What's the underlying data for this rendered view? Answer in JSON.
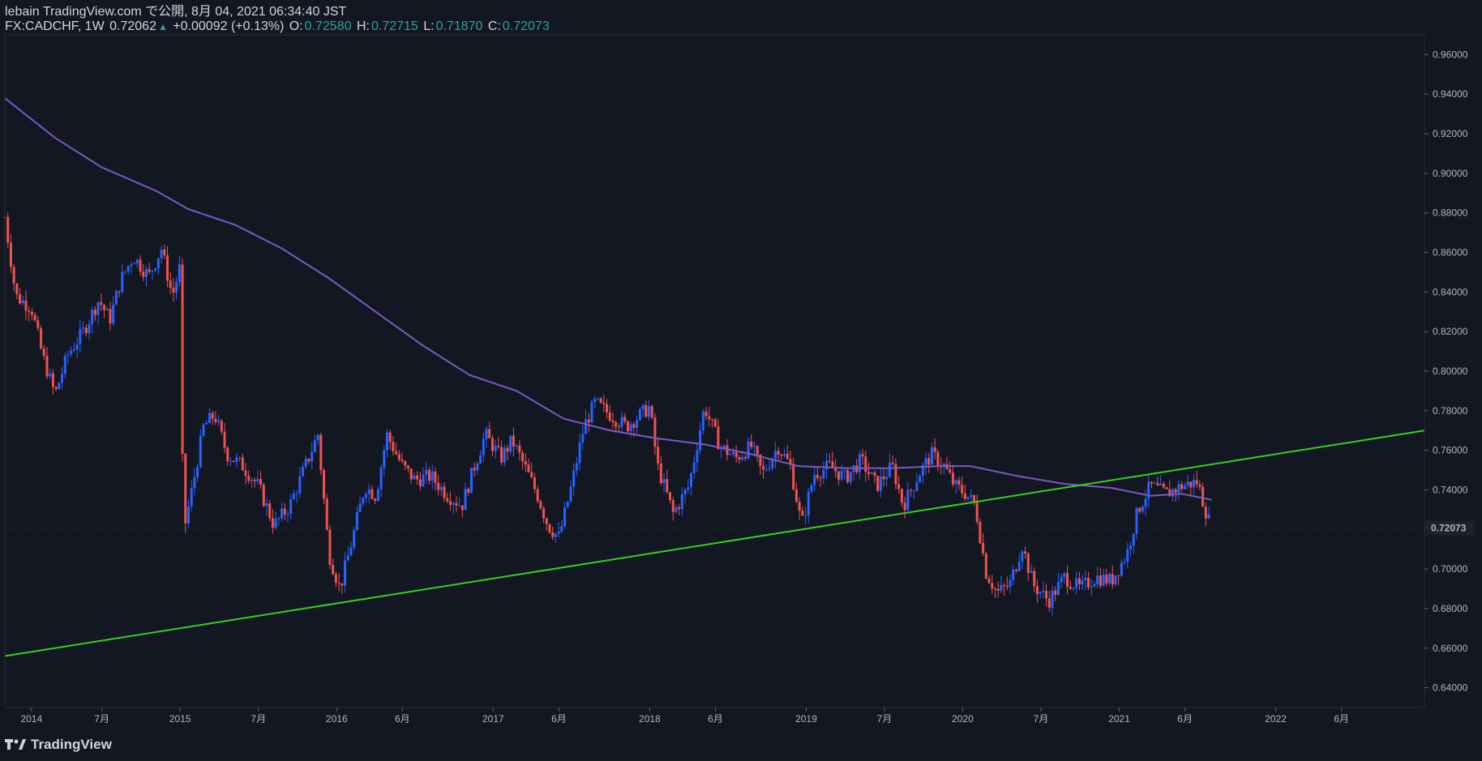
{
  "header": {
    "publish_line": "lebain TradingView.com で公開, 8月 04, 2021 06:34:40 JST",
    "symbol": "FX:CADCHF, 1W",
    "last": "0.72062",
    "change": "+0.00092 (+0.13%)",
    "o_label": "O:",
    "o_value": "0.72580",
    "h_label": "H:",
    "h_value": "0.72715",
    "l_label": "L:",
    "l_value": "0.71870",
    "c_label": "C:",
    "c_value": "0.72073"
  },
  "footer": {
    "brand": "TradingView"
  },
  "colors": {
    "bg": "#131722",
    "up": "#2962ff",
    "down": "#ef5350",
    "ma": "#7e57c2",
    "trend": "#33d11f",
    "grid": "#2a2e39"
  },
  "chart_data": {
    "type": "candlestick",
    "title": "FX:CADCHF 1W",
    "y_range": [
      0.63,
      0.97
    ],
    "y_ticks": [
      "0.96000",
      "0.94000",
      "0.92000",
      "0.90000",
      "0.88000",
      "0.86000",
      "0.84000",
      "0.82000",
      "0.80000",
      "0.78000",
      "0.76000",
      "0.74000",
      "0.72000",
      "0.70000",
      "0.68000",
      "0.66000",
      "0.64000"
    ],
    "last_price_label": "0.72073",
    "last_price": 0.72073,
    "x_range": [
      2013.88,
      2022.95
    ],
    "x_ticks": [
      {
        "t": 2014.05,
        "label": "2014"
      },
      {
        "t": 2014.5,
        "label": "7月"
      },
      {
        "t": 2015.0,
        "label": "2015"
      },
      {
        "t": 2015.5,
        "label": "7月"
      },
      {
        "t": 2016.0,
        "label": "2016"
      },
      {
        "t": 2016.42,
        "label": "6月"
      },
      {
        "t": 2017.0,
        "label": "2017"
      },
      {
        "t": 2017.42,
        "label": "6月"
      },
      {
        "t": 2018.0,
        "label": "2018"
      },
      {
        "t": 2018.42,
        "label": "6月"
      },
      {
        "t": 2019.0,
        "label": "2019"
      },
      {
        "t": 2019.5,
        "label": "7月"
      },
      {
        "t": 2020.0,
        "label": "2020"
      },
      {
        "t": 2020.5,
        "label": "7月"
      },
      {
        "t": 2021.0,
        "label": "2021"
      },
      {
        "t": 2021.42,
        "label": "6月"
      },
      {
        "t": 2022.0,
        "label": "2022"
      },
      {
        "t": 2022.42,
        "label": "6月"
      }
    ],
    "price_path": [
      [
        2013.88,
        0.878
      ],
      [
        2013.95,
        0.838
      ],
      [
        2014.05,
        0.832
      ],
      [
        2014.12,
        0.808
      ],
      [
        2014.2,
        0.788
      ],
      [
        2014.28,
        0.808
      ],
      [
        2014.38,
        0.82
      ],
      [
        2014.48,
        0.836
      ],
      [
        2014.55,
        0.826
      ],
      [
        2014.62,
        0.846
      ],
      [
        2014.7,
        0.858
      ],
      [
        2014.8,
        0.848
      ],
      [
        2014.88,
        0.862
      ],
      [
        2014.95,
        0.838
      ],
      [
        2015.0,
        0.853
      ],
      [
        2015.02,
        0.718
      ],
      [
        2015.08,
        0.742
      ],
      [
        2015.15,
        0.772
      ],
      [
        2015.22,
        0.778
      ],
      [
        2015.3,
        0.758
      ],
      [
        2015.4,
        0.752
      ],
      [
        2015.5,
        0.742
      ],
      [
        2015.6,
        0.722
      ],
      [
        2015.7,
        0.732
      ],
      [
        2015.8,
        0.752
      ],
      [
        2015.88,
        0.768
      ],
      [
        2015.95,
        0.708
      ],
      [
        2016.02,
        0.69
      ],
      [
        2016.1,
        0.715
      ],
      [
        2016.18,
        0.742
      ],
      [
        2016.25,
        0.737
      ],
      [
        2016.32,
        0.768
      ],
      [
        2016.42,
        0.752
      ],
      [
        2016.5,
        0.745
      ],
      [
        2016.6,
        0.747
      ],
      [
        2016.7,
        0.738
      ],
      [
        2016.8,
        0.732
      ],
      [
        2016.88,
        0.752
      ],
      [
        2016.95,
        0.768
      ],
      [
        2017.05,
        0.756
      ],
      [
        2017.12,
        0.765
      ],
      [
        2017.2,
        0.752
      ],
      [
        2017.28,
        0.738
      ],
      [
        2017.35,
        0.722
      ],
      [
        2017.42,
        0.716
      ],
      [
        2017.5,
        0.742
      ],
      [
        2017.58,
        0.772
      ],
      [
        2017.65,
        0.784
      ],
      [
        2017.75,
        0.778
      ],
      [
        2017.85,
        0.772
      ],
      [
        2018.0,
        0.782
      ],
      [
        2018.05,
        0.752
      ],
      [
        2018.15,
        0.728
      ],
      [
        2018.25,
        0.742
      ],
      [
        2018.35,
        0.782
      ],
      [
        2018.45,
        0.762
      ],
      [
        2018.55,
        0.756
      ],
      [
        2018.65,
        0.762
      ],
      [
        2018.72,
        0.748
      ],
      [
        2018.82,
        0.762
      ],
      [
        2018.9,
        0.752
      ],
      [
        2018.97,
        0.722
      ],
      [
        2019.05,
        0.748
      ],
      [
        2019.15,
        0.752
      ],
      [
        2019.25,
        0.746
      ],
      [
        2019.35,
        0.755
      ],
      [
        2019.45,
        0.742
      ],
      [
        2019.55,
        0.752
      ],
      [
        2019.62,
        0.732
      ],
      [
        2019.72,
        0.748
      ],
      [
        2019.8,
        0.758
      ],
      [
        2019.88,
        0.752
      ],
      [
        2019.95,
        0.742
      ],
      [
        2020.02,
        0.738
      ],
      [
        2020.08,
        0.732
      ],
      [
        2020.15,
        0.698
      ],
      [
        2020.22,
        0.688
      ],
      [
        2020.3,
        0.692
      ],
      [
        2020.38,
        0.712
      ],
      [
        2020.45,
        0.692
      ],
      [
        2020.55,
        0.684
      ],
      [
        2020.65,
        0.696
      ],
      [
        2020.75,
        0.69
      ],
      [
        2020.85,
        0.696
      ],
      [
        2020.95,
        0.694
      ],
      [
        2021.05,
        0.708
      ],
      [
        2021.12,
        0.73
      ],
      [
        2021.2,
        0.742
      ],
      [
        2021.3,
        0.738
      ],
      [
        2021.4,
        0.742
      ],
      [
        2021.5,
        0.744
      ],
      [
        2021.55,
        0.73
      ],
      [
        2021.59,
        0.7207
      ]
    ],
    "ma_path": [
      [
        2013.88,
        0.938
      ],
      [
        2014.2,
        0.918
      ],
      [
        2014.5,
        0.903
      ],
      [
        2014.85,
        0.891
      ],
      [
        2015.05,
        0.882
      ],
      [
        2015.35,
        0.874
      ],
      [
        2015.65,
        0.862
      ],
      [
        2015.95,
        0.847
      ],
      [
        2016.25,
        0.83
      ],
      [
        2016.55,
        0.813
      ],
      [
        2016.85,
        0.798
      ],
      [
        2017.15,
        0.79
      ],
      [
        2017.45,
        0.776
      ],
      [
        2017.75,
        0.77
      ],
      [
        2018.05,
        0.766
      ],
      [
        2018.35,
        0.763
      ],
      [
        2018.65,
        0.758
      ],
      [
        2018.95,
        0.752
      ],
      [
        2019.25,
        0.751
      ],
      [
        2019.55,
        0.751
      ],
      [
        2019.85,
        0.752
      ],
      [
        2020.05,
        0.752
      ],
      [
        2020.35,
        0.747
      ],
      [
        2020.65,
        0.743
      ],
      [
        2020.95,
        0.741
      ],
      [
        2021.2,
        0.737
      ],
      [
        2021.4,
        0.738
      ],
      [
        2021.59,
        0.735
      ]
    ],
    "trendline": {
      "points": [
        [
          2013.88,
          0.656
        ],
        [
          2022.95,
          0.77
        ]
      ]
    }
  }
}
